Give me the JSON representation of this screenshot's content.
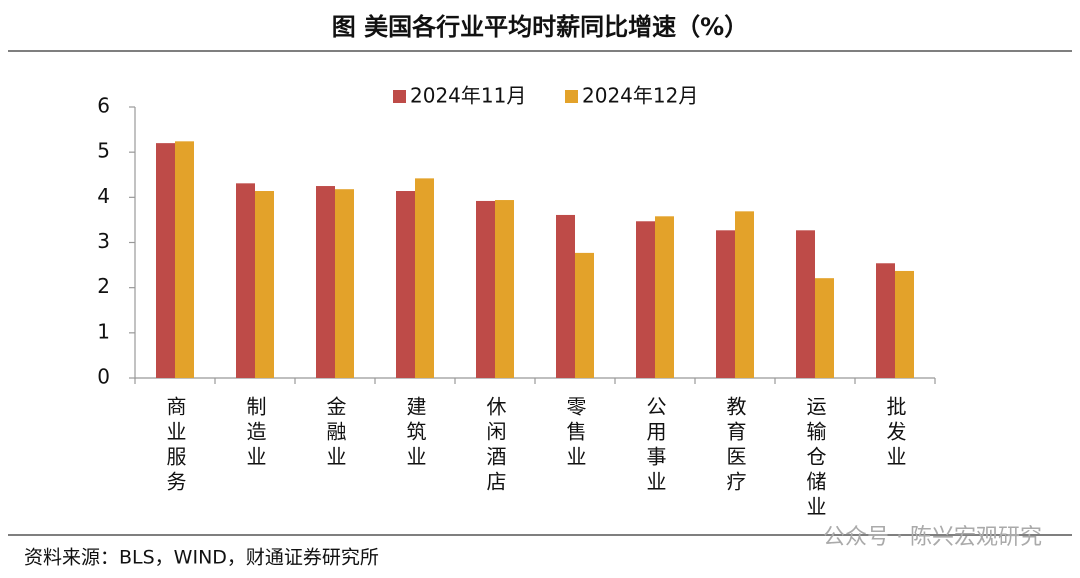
{
  "chart_data": {
    "type": "bar",
    "title": "图  美国各行业平均时薪同比增速（%）",
    "source": "资料来源：BLS，WIND，财通证券研究所",
    "watermark": "公众号 · 陈兴宏观研究",
    "categories": [
      "商业服务",
      "制造业",
      "金融业",
      "建筑业",
      "休闲酒店",
      "零售业",
      "公用事业",
      "教育医疗",
      "运输仓储业",
      "批发业"
    ],
    "series": [
      {
        "name": "2024年11月",
        "color": "#BE4B48",
        "values": [
          5.2,
          4.31,
          4.25,
          4.14,
          3.92,
          3.61,
          3.47,
          3.27,
          3.27,
          2.54
        ]
      },
      {
        "name": "2024年12月",
        "color": "#E3A22A",
        "values": [
          5.24,
          4.14,
          4.18,
          4.42,
          3.94,
          2.77,
          3.58,
          3.69,
          2.21,
          2.37
        ]
      }
    ],
    "ylim": [
      0,
      6
    ],
    "yticks": [
      0,
      1,
      2,
      3,
      4,
      5,
      6
    ],
    "grid": false
  }
}
